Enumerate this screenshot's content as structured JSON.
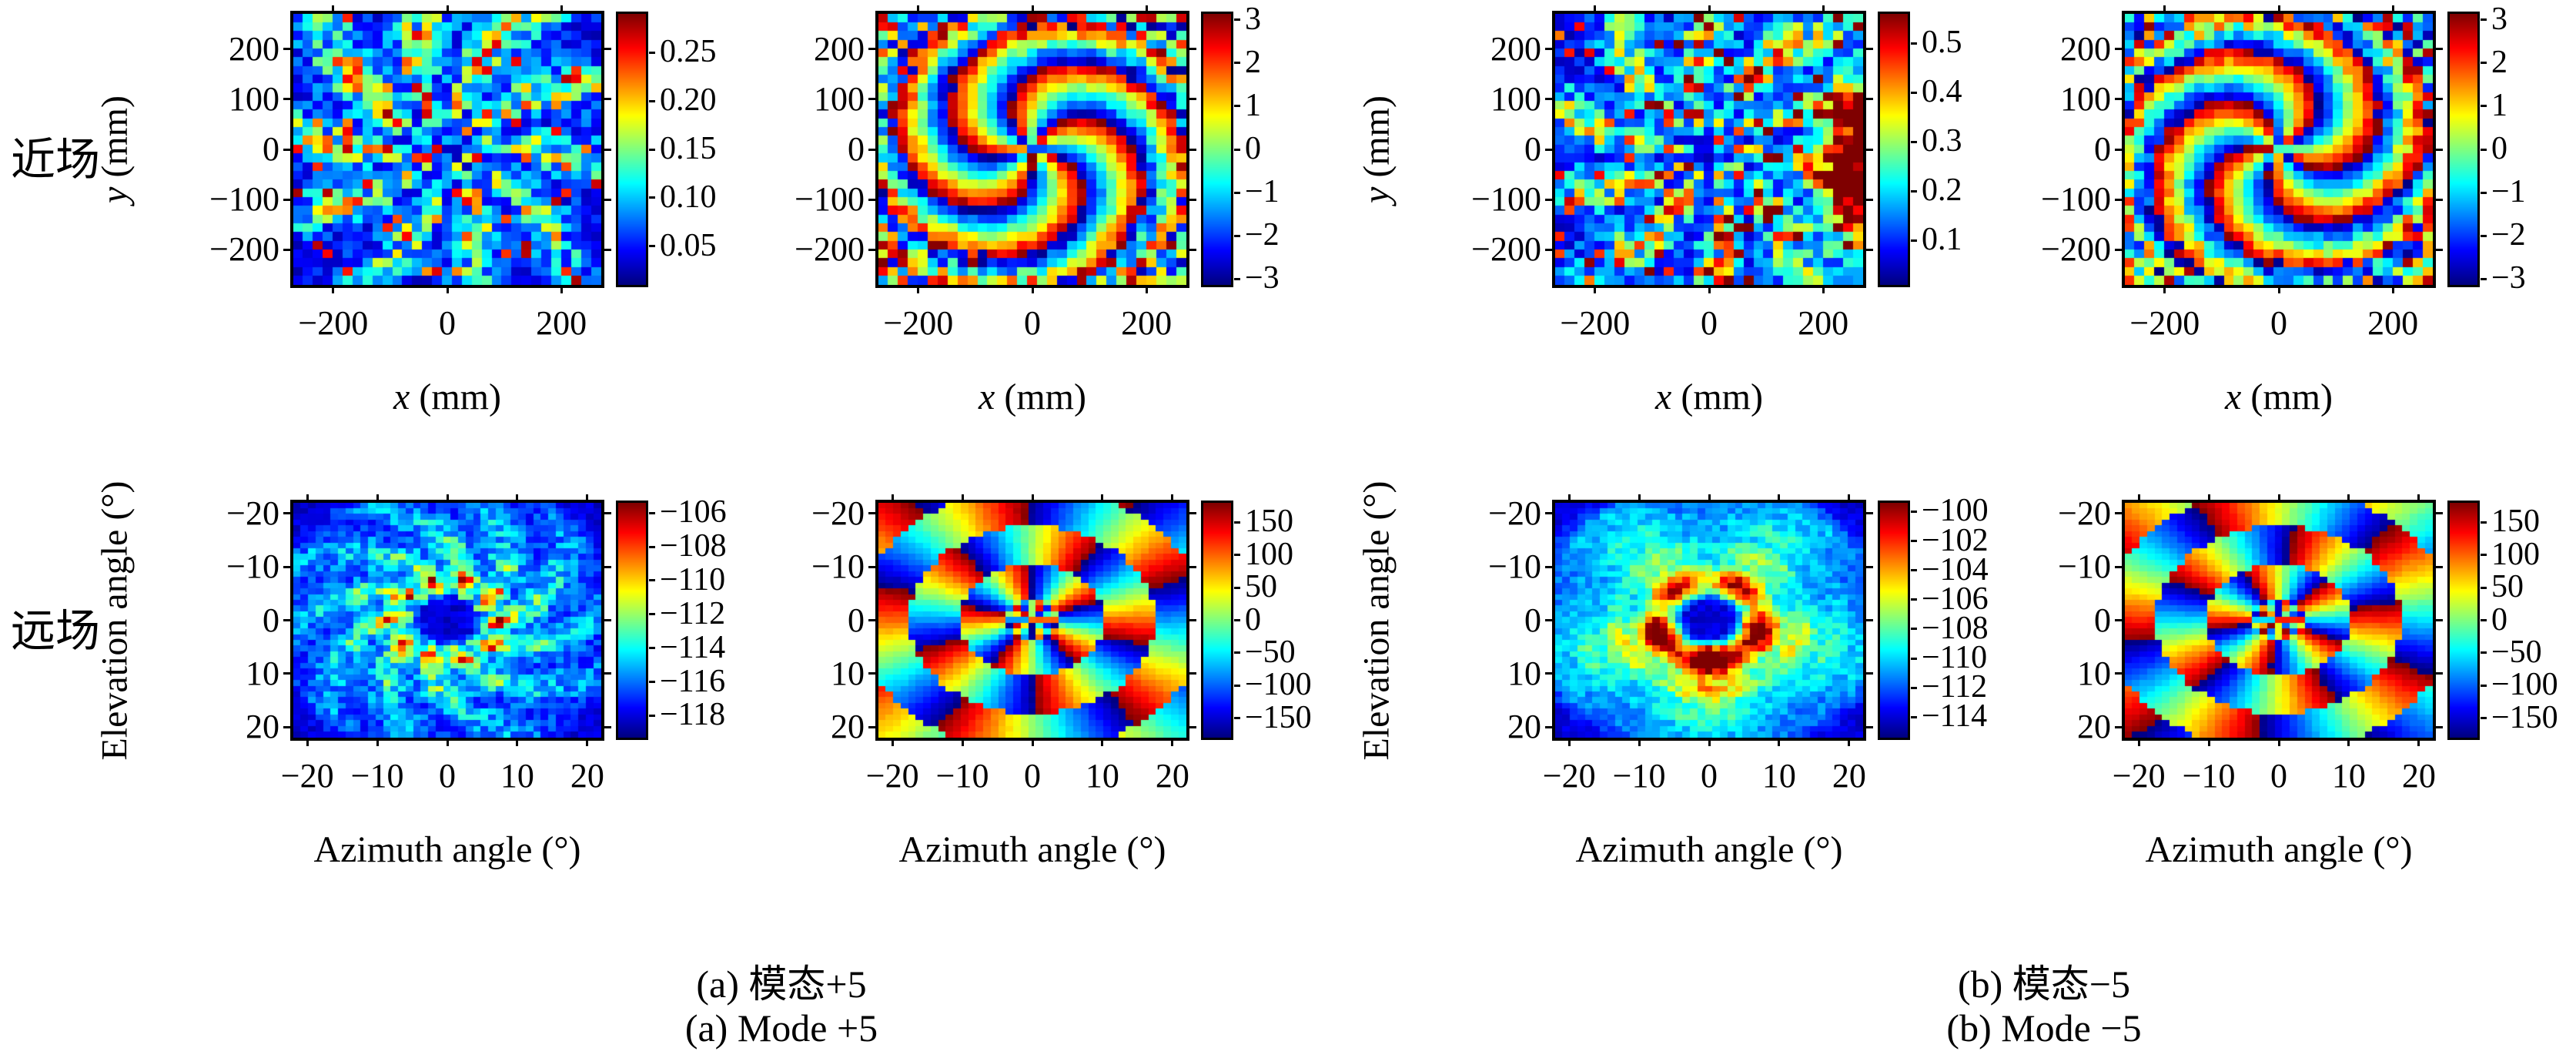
{
  "figure": {
    "background": "#ffffff",
    "text_color": "#000000",
    "colormap_name": "jet",
    "row_labels": [
      {
        "text": "近场"
      },
      {
        "text": "远场"
      }
    ],
    "captions": [
      {
        "line1": "(a) 模态+5",
        "line2": "(a) Mode +5"
      },
      {
        "line1": "(b) 模态−5",
        "line2": "(b) Mode −5"
      }
    ]
  },
  "chart_data": [
    {
      "id": "a-nearfield-amplitude",
      "type": "heatmap",
      "colormap": "jet",
      "row": 0,
      "col": 0,
      "xlabel_italic": "x",
      "xlabel_plain": " (mm)",
      "ylabel_italic": "y",
      "ylabel_plain": " (mm)",
      "x_range": [
        -270,
        270
      ],
      "y_top": 270,
      "y_bottom": -270,
      "x_ticks": [
        -200,
        0,
        200
      ],
      "y_ticks": [
        200,
        100,
        0,
        -100,
        -200
      ],
      "grid": [
        31,
        31
      ],
      "value_range": [
        0.01,
        0.29
      ],
      "colorbar_ticks": [
        {
          "v": 0.25,
          "label": "0.25"
        },
        {
          "v": 0.2,
          "label": "0.20"
        },
        {
          "v": 0.15,
          "label": "0.15"
        },
        {
          "v": 0.1,
          "label": "0.10"
        },
        {
          "v": 0.05,
          "label": "0.05"
        }
      ],
      "pattern": {
        "kind": "nearfield_amplitude",
        "mode": 5,
        "seed": 11
      }
    },
    {
      "id": "a-nearfield-phase",
      "type": "heatmap",
      "colormap": "jet",
      "row": 0,
      "col": 1,
      "xlabel_italic": "x",
      "xlabel_plain": " (mm)",
      "ylabel_italic": "",
      "ylabel_plain": "",
      "x_range": [
        -270,
        270
      ],
      "y_top": 270,
      "y_bottom": -270,
      "x_ticks": [
        -200,
        0,
        200
      ],
      "y_ticks": [
        200,
        100,
        0,
        -100,
        -200
      ],
      "grid": [
        31,
        31
      ],
      "value_range": [
        -3.1416,
        3.1416
      ],
      "colorbar_ticks": [
        {
          "v": 3,
          "label": "3"
        },
        {
          "v": 2,
          "label": "2"
        },
        {
          "v": 1,
          "label": "1"
        },
        {
          "v": 0,
          "label": "0"
        },
        {
          "v": -1,
          "label": "−1"
        },
        {
          "v": -2,
          "label": "−2"
        },
        {
          "v": -3,
          "label": "−3"
        }
      ],
      "pattern": {
        "kind": "nearfield_phase",
        "mode": 5,
        "seed": 22
      }
    },
    {
      "id": "b-nearfield-amplitude",
      "type": "heatmap",
      "colormap": "jet",
      "row": 0,
      "col": 2,
      "xlabel_italic": "x",
      "xlabel_plain": " (mm)",
      "ylabel_italic": "y",
      "ylabel_plain": " (mm)",
      "x_range": [
        -270,
        270
      ],
      "y_top": 270,
      "y_bottom": -270,
      "x_ticks": [
        -200,
        0,
        200
      ],
      "y_ticks": [
        200,
        100,
        0,
        -100,
        -200
      ],
      "grid": [
        31,
        31
      ],
      "value_range": [
        0.01,
        0.56
      ],
      "colorbar_ticks": [
        {
          "v": 0.5,
          "label": "0.5"
        },
        {
          "v": 0.4,
          "label": "0.4"
        },
        {
          "v": 0.3,
          "label": "0.3"
        },
        {
          "v": 0.2,
          "label": "0.2"
        },
        {
          "v": 0.1,
          "label": "0.1"
        }
      ],
      "pattern": {
        "kind": "nearfield_amplitude",
        "mode": -5,
        "seed": 33
      }
    },
    {
      "id": "b-nearfield-phase",
      "type": "heatmap",
      "colormap": "jet",
      "row": 0,
      "col": 3,
      "xlabel_italic": "x",
      "xlabel_plain": " (mm)",
      "ylabel_italic": "",
      "ylabel_plain": "",
      "x_range": [
        -270,
        270
      ],
      "y_top": 270,
      "y_bottom": -270,
      "x_ticks": [
        -200,
        0,
        200
      ],
      "y_ticks": [
        200,
        100,
        0,
        -100,
        -200
      ],
      "grid": [
        31,
        31
      ],
      "value_range": [
        -3.1416,
        3.1416
      ],
      "colorbar_ticks": [
        {
          "v": 3,
          "label": "3"
        },
        {
          "v": 2,
          "label": "2"
        },
        {
          "v": 1,
          "label": "1"
        },
        {
          "v": 0,
          "label": "0"
        },
        {
          "v": -1,
          "label": "−1"
        },
        {
          "v": -2,
          "label": "−2"
        },
        {
          "v": -3,
          "label": "−3"
        }
      ],
      "pattern": {
        "kind": "nearfield_phase",
        "mode": -5,
        "seed": 44
      }
    },
    {
      "id": "a-farfield-amplitude",
      "type": "heatmap",
      "colormap": "jet",
      "row": 1,
      "col": 0,
      "xlabel_italic": "",
      "xlabel_plain": "Azimuth angle (°)",
      "ylabel_italic": "",
      "ylabel_plain": "Elevation angle (°)",
      "x_range": [
        -22,
        22
      ],
      "y_top": -22,
      "y_bottom": 22,
      "x_ticks": [
        -20,
        -10,
        0,
        10,
        20
      ],
      "y_ticks": [
        -20,
        -10,
        0,
        10,
        20
      ],
      "grid": [
        41,
        41
      ],
      "value_range": [
        -119.3,
        -105.4
      ],
      "colorbar_ticks": [
        {
          "v": -106,
          "label": "−106"
        },
        {
          "v": -108,
          "label": "−108"
        },
        {
          "v": -110,
          "label": "−110"
        },
        {
          "v": -112,
          "label": "−112"
        },
        {
          "v": -114,
          "label": "−114"
        },
        {
          "v": -116,
          "label": "−116"
        },
        {
          "v": -118,
          "label": "−118"
        }
      ],
      "pattern": {
        "kind": "farfield_amplitude",
        "mode": 5,
        "seed": 55
      }
    },
    {
      "id": "a-farfield-phase",
      "type": "heatmap",
      "colormap": "jet",
      "row": 1,
      "col": 1,
      "xlabel_italic": "",
      "xlabel_plain": "Azimuth angle (°)",
      "ylabel_italic": "",
      "ylabel_plain": "",
      "x_range": [
        -22,
        22
      ],
      "y_top": -22,
      "y_bottom": 22,
      "x_ticks": [
        -20,
        -10,
        0,
        10,
        20
      ],
      "y_ticks": [
        -20,
        -10,
        0,
        10,
        20
      ],
      "grid": [
        41,
        41
      ],
      "value_range": [
        -180,
        180
      ],
      "colorbar_ticks": [
        {
          "v": 150,
          "label": "150"
        },
        {
          "v": 100,
          "label": "100"
        },
        {
          "v": 50,
          "label": "50"
        },
        {
          "v": 0,
          "label": "0"
        },
        {
          "v": -50,
          "label": "−50"
        },
        {
          "v": -100,
          "label": "−100"
        },
        {
          "v": -150,
          "label": "−150"
        }
      ],
      "pattern": {
        "kind": "farfield_phase",
        "mode": 5,
        "seed": 66
      }
    },
    {
      "id": "b-farfield-amplitude",
      "type": "heatmap",
      "colormap": "jet",
      "row": 1,
      "col": 2,
      "xlabel_italic": "",
      "xlabel_plain": "Azimuth angle (°)",
      "ylabel_italic": "",
      "ylabel_plain": "Elevation angle (°)",
      "x_range": [
        -22,
        22
      ],
      "y_top": -22,
      "y_bottom": 22,
      "x_ticks": [
        -20,
        -10,
        0,
        10,
        20
      ],
      "y_ticks": [
        -20,
        -10,
        0,
        10,
        20
      ],
      "grid": [
        41,
        41
      ],
      "value_range": [
        -115.4,
        -99.4
      ],
      "colorbar_ticks": [
        {
          "v": -100,
          "label": "−100"
        },
        {
          "v": -102,
          "label": "−102"
        },
        {
          "v": -104,
          "label": "−104"
        },
        {
          "v": -106,
          "label": "−106"
        },
        {
          "v": -108,
          "label": "−108"
        },
        {
          "v": -110,
          "label": "−110"
        },
        {
          "v": -112,
          "label": "−112"
        },
        {
          "v": -114,
          "label": "−114"
        }
      ],
      "pattern": {
        "kind": "farfield_amplitude",
        "mode": -5,
        "seed": 77
      }
    },
    {
      "id": "b-farfield-phase",
      "type": "heatmap",
      "colormap": "jet",
      "row": 1,
      "col": 3,
      "xlabel_italic": "",
      "xlabel_plain": "Azimuth angle (°)",
      "ylabel_italic": "",
      "ylabel_plain": "",
      "x_range": [
        -22,
        22
      ],
      "y_top": -22,
      "y_bottom": 22,
      "x_ticks": [
        -20,
        -10,
        0,
        10,
        20
      ],
      "y_ticks": [
        -20,
        -10,
        0,
        10,
        20
      ],
      "grid": [
        41,
        41
      ],
      "value_range": [
        -180,
        180
      ],
      "colorbar_ticks": [
        {
          "v": 150,
          "label": "150"
        },
        {
          "v": 100,
          "label": "100"
        },
        {
          "v": 50,
          "label": "50"
        },
        {
          "v": 0,
          "label": "0"
        },
        {
          "v": -50,
          "label": "−50"
        },
        {
          "v": -100,
          "label": "−100"
        },
        {
          "v": -150,
          "label": "−150"
        }
      ],
      "pattern": {
        "kind": "farfield_phase",
        "mode": -5,
        "seed": 88
      }
    }
  ]
}
